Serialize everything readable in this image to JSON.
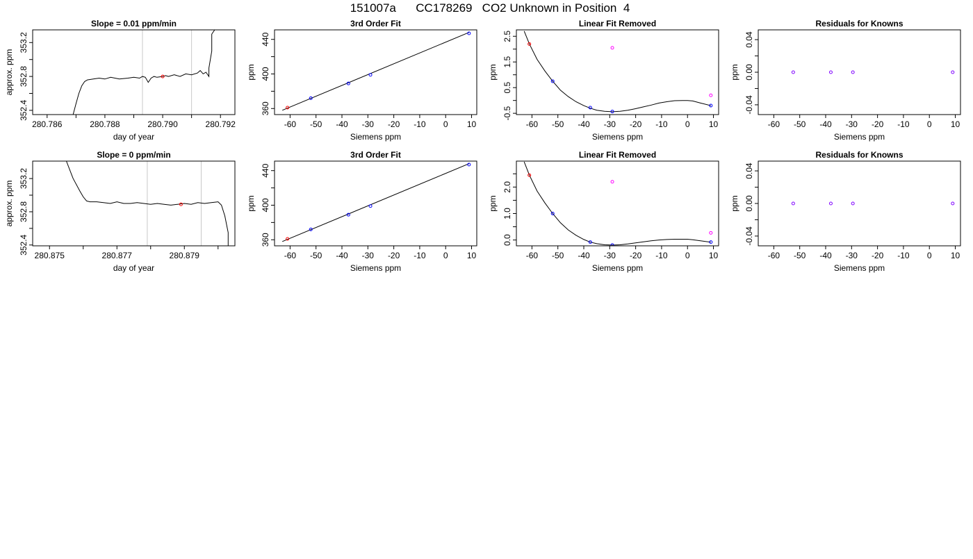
{
  "page_title": "151007a      CC178269   CO2 Unknown in Position  4",
  "colors": {
    "background": "#ffffff",
    "axis": "#000000",
    "trace": "#000000",
    "vline": "#c8c8c8",
    "unknown_point": "#ff0000",
    "known_point": "#0000ff",
    "unknown_check": "#ff00ff",
    "residual_point": "#7f00ff"
  },
  "chart_data": [
    {
      "id": "r1c1",
      "type": "line",
      "title": "Slope =  0.01  ppm/min",
      "xlabel": "day of year",
      "ylabel": "approx. ppm",
      "xlim": [
        280.7855,
        280.7925
      ],
      "ylim": [
        352.35,
        353.35
      ],
      "xticks": [
        280.786,
        280.788,
        280.79,
        280.792
      ],
      "xtick_labels": [
        "280.786",
        "280.788",
        "280.790",
        "280.792"
      ],
      "xticks_minor": [
        280.787,
        280.789,
        280.791
      ],
      "yticks": [
        352.4,
        352.8,
        353.2
      ],
      "ytick_labels": [
        "352.4",
        "352.8",
        "353.2"
      ],
      "yticks_minor": [
        352.6,
        353.0
      ],
      "vlines": [
        280.7893,
        280.791
      ],
      "trace": {
        "x": [
          280.7869,
          280.787,
          280.7871,
          280.7872,
          280.7873,
          280.7874,
          280.7876,
          280.7878,
          280.788,
          280.7882,
          280.7885,
          280.7888,
          280.789,
          280.7892,
          280.7893,
          280.7894,
          280.7895,
          280.7896,
          280.7897,
          280.7898,
          280.79,
          280.7901,
          280.7902,
          280.7904,
          280.7906,
          280.7908,
          280.791,
          280.7912,
          280.7913,
          280.7914,
          280.7915,
          280.7916,
          280.7916,
          280.7917,
          280.7917,
          280.7918
        ],
        "y": [
          352.35,
          352.48,
          352.6,
          352.69,
          352.74,
          352.76,
          352.77,
          352.78,
          352.77,
          352.79,
          352.77,
          352.78,
          352.79,
          352.78,
          352.8,
          352.79,
          352.73,
          352.78,
          352.8,
          352.79,
          352.8,
          352.81,
          352.8,
          352.82,
          352.8,
          352.83,
          352.82,
          352.84,
          352.87,
          352.83,
          352.85,
          352.8,
          352.9,
          353.1,
          353.3,
          353.35
        ]
      },
      "points": [
        {
          "x": 280.79,
          "y": 352.8,
          "kind": "unknown_point"
        }
      ]
    },
    {
      "id": "r1c2",
      "type": "line",
      "title": "3rd Order Fit",
      "xlabel": "Siemens ppm",
      "ylabel": "ppm",
      "xlim": [
        -66,
        12
      ],
      "ylim": [
        353,
        451
      ],
      "xticks": [
        -60,
        -50,
        -40,
        -30,
        -20,
        -10,
        0,
        10
      ],
      "xtick_labels": [
        "-60",
        "-50",
        "-40",
        "-30",
        "-20",
        "-10",
        "0",
        "10"
      ],
      "yticks": [
        360,
        400,
        440
      ],
      "ytick_labels": [
        "360",
        "400",
        "440"
      ],
      "yticks_minor": [
        380,
        420
      ],
      "curve": {
        "x": [
          -63,
          9
        ],
        "y": [
          358,
          448
        ]
      },
      "points": [
        {
          "x": -61,
          "y": 361,
          "kind": "unknown_point"
        },
        {
          "x": -52,
          "y": 372,
          "kind": "known_point"
        },
        {
          "x": -37.5,
          "y": 389,
          "kind": "known_point"
        },
        {
          "x": -29,
          "y": 399,
          "kind": "known_point"
        },
        {
          "x": 9,
          "y": 447,
          "kind": "known_point"
        }
      ]
    },
    {
      "id": "r1c3",
      "type": "line",
      "title": "Linear Fit Removed",
      "xlabel": "Siemens ppm",
      "ylabel": "ppm",
      "xlim": [
        -66,
        12
      ],
      "ylim": [
        -0.55,
        2.75
      ],
      "xticks": [
        -60,
        -50,
        -40,
        -30,
        -20,
        -10,
        0,
        10
      ],
      "xtick_labels": [
        "-60",
        "-50",
        "-40",
        "-30",
        "-20",
        "-10",
        "0",
        "10"
      ],
      "yticks": [
        -0.5,
        0.5,
        1.5,
        2.5
      ],
      "ytick_labels": [
        "-0.5",
        "0.5",
        "1.5",
        "2.5"
      ],
      "yticks_minor": [
        0.0,
        1.0,
        2.0
      ],
      "curve": {
        "x": [
          -63,
          -61,
          -58,
          -55,
          -52,
          -49,
          -46,
          -43,
          -40,
          -37.5,
          -35,
          -32,
          -29,
          -26,
          -23,
          -20,
          -17,
          -14,
          -11,
          -8,
          -5,
          -2,
          0,
          2,
          5,
          9
        ],
        "y": [
          2.7,
          2.2,
          1.6,
          1.15,
          0.75,
          0.4,
          0.15,
          -0.05,
          -0.2,
          -0.3,
          -0.38,
          -0.42,
          -0.44,
          -0.42,
          -0.38,
          -0.32,
          -0.25,
          -0.18,
          -0.1,
          -0.05,
          -0.01,
          0.0,
          0.0,
          -0.02,
          -0.1,
          -0.2
        ]
      },
      "points": [
        {
          "x": -61,
          "y": 2.2,
          "kind": "unknown_point"
        },
        {
          "x": -52,
          "y": 0.75,
          "kind": "known_point"
        },
        {
          "x": -37.5,
          "y": -0.28,
          "kind": "known_point"
        },
        {
          "x": -29,
          "y": -0.43,
          "kind": "known_point"
        },
        {
          "x": 9,
          "y": -0.2,
          "kind": "known_point"
        },
        {
          "x": -29,
          "y": 2.05,
          "kind": "unknown_check"
        },
        {
          "x": 9,
          "y": 0.2,
          "kind": "unknown_check"
        }
      ]
    },
    {
      "id": "r1c4",
      "type": "scatter",
      "title": "Residuals for Knowns",
      "xlabel": "Siemens ppm",
      "ylabel": "ppm",
      "xlim": [
        -66,
        12
      ],
      "ylim": [
        -0.052,
        0.052
      ],
      "xticks": [
        -60,
        -50,
        -40,
        -30,
        -20,
        -10,
        0,
        10
      ],
      "xtick_labels": [
        "-60",
        "-50",
        "-40",
        "-30",
        "-20",
        "-10",
        "0",
        "10"
      ],
      "yticks": [
        -0.04,
        0.0,
        0.04
      ],
      "ytick_labels": [
        "-0.04",
        "0.00",
        "0.04"
      ],
      "yticks_minor": [
        -0.02,
        0.02
      ],
      "points": [
        {
          "x": -52.5,
          "y": 0,
          "kind": "residual_point"
        },
        {
          "x": -38,
          "y": 0,
          "kind": "residual_point"
        },
        {
          "x": -29.5,
          "y": 0,
          "kind": "residual_point"
        },
        {
          "x": 9,
          "y": 0,
          "kind": "residual_point"
        }
      ]
    },
    {
      "id": "r2c1",
      "type": "line",
      "title": "Slope =  0  ppm/min",
      "xlabel": "day of year",
      "ylabel": "approx. ppm",
      "xlim": [
        280.8745,
        280.8805
      ],
      "ylim": [
        352.39,
        353.41
      ],
      "xticks": [
        280.875,
        280.877,
        280.879
      ],
      "xtick_labels": [
        "280.875",
        "280.877",
        "280.879"
      ],
      "xticks_minor": [
        280.876,
        280.878,
        280.88
      ],
      "yticks": [
        352.4,
        352.8,
        353.2
      ],
      "ytick_labels": [
        "352.4",
        "352.8",
        "353.2"
      ],
      "yticks_minor": [
        352.6,
        353.0
      ],
      "vlines": [
        280.8779,
        280.8795
      ],
      "trace": {
        "x": [
          280.8755,
          280.8757,
          280.8759,
          280.876,
          280.8761,
          280.8762,
          280.8764,
          280.8766,
          280.8768,
          280.877,
          280.8772,
          280.8774,
          280.8776,
          280.8778,
          280.878,
          280.8782,
          280.8784,
          280.8786,
          280.8788,
          280.879,
          280.8792,
          280.8794,
          280.8796,
          280.8798,
          280.88,
          280.8801,
          280.8802,
          280.8803,
          280.8803
        ],
        "y": [
          353.41,
          353.2,
          353.05,
          352.98,
          352.93,
          352.92,
          352.92,
          352.91,
          352.9,
          352.92,
          352.9,
          352.9,
          352.91,
          352.9,
          352.89,
          352.9,
          352.89,
          352.88,
          352.89,
          352.9,
          352.89,
          352.91,
          352.9,
          352.91,
          352.92,
          352.88,
          352.75,
          352.55,
          352.39
        ]
      },
      "points": [
        {
          "x": 280.8789,
          "y": 352.89,
          "kind": "unknown_point"
        }
      ]
    },
    {
      "id": "r2c2",
      "type": "line",
      "title": "3rd Order Fit",
      "xlabel": "Siemens ppm",
      "ylabel": "ppm",
      "xlim": [
        -66,
        12
      ],
      "ylim": [
        353,
        451
      ],
      "xticks": [
        -60,
        -50,
        -40,
        -30,
        -20,
        -10,
        0,
        10
      ],
      "xtick_labels": [
        "-60",
        "-50",
        "-40",
        "-30",
        "-20",
        "-10",
        "0",
        "10"
      ],
      "yticks": [
        360,
        400,
        440
      ],
      "ytick_labels": [
        "360",
        "400",
        "440"
      ],
      "yticks_minor": [
        380,
        420
      ],
      "curve": {
        "x": [
          -63,
          9
        ],
        "y": [
          358,
          448
        ]
      },
      "points": [
        {
          "x": -61,
          "y": 361,
          "kind": "unknown_point"
        },
        {
          "x": -52,
          "y": 372,
          "kind": "known_point"
        },
        {
          "x": -37.5,
          "y": 389,
          "kind": "known_point"
        },
        {
          "x": -29,
          "y": 399,
          "kind": "known_point"
        },
        {
          "x": 9,
          "y": 447,
          "kind": "known_point"
        }
      ]
    },
    {
      "id": "r2c3",
      "type": "line",
      "title": "Linear Fit Removed",
      "xlabel": "Siemens ppm",
      "ylabel": "ppm",
      "xlim": [
        -66,
        12
      ],
      "ylim": [
        -0.22,
        2.98
      ],
      "xticks": [
        -60,
        -50,
        -40,
        -30,
        -20,
        -10,
        0,
        10
      ],
      "xtick_labels": [
        "-60",
        "-50",
        "-40",
        "-30",
        "-20",
        "-10",
        "0",
        "10"
      ],
      "yticks": [
        0.0,
        1.0,
        2.0
      ],
      "ytick_labels": [
        "0.0",
        "1.0",
        "2.0"
      ],
      "yticks_minor": [
        0.5,
        1.5,
        2.5
      ],
      "curve": {
        "x": [
          -63,
          -61,
          -58,
          -55,
          -52,
          -49,
          -46,
          -43,
          -40,
          -37.5,
          -35,
          -32,
          -29,
          -26,
          -23,
          -20,
          -17,
          -14,
          -11,
          -8,
          -5,
          -2,
          0,
          2,
          5,
          9
        ],
        "y": [
          2.95,
          2.45,
          1.85,
          1.4,
          1.0,
          0.65,
          0.38,
          0.18,
          0.02,
          -0.08,
          -0.14,
          -0.18,
          -0.19,
          -0.18,
          -0.15,
          -0.11,
          -0.07,
          -0.03,
          0.0,
          0.02,
          0.03,
          0.03,
          0.03,
          0.01,
          -0.03,
          -0.08
        ]
      },
      "points": [
        {
          "x": -61,
          "y": 2.45,
          "kind": "unknown_point"
        },
        {
          "x": -52,
          "y": 1.0,
          "kind": "known_point"
        },
        {
          "x": -37.5,
          "y": -0.08,
          "kind": "known_point"
        },
        {
          "x": -29,
          "y": -0.19,
          "kind": "known_point"
        },
        {
          "x": 9,
          "y": -0.08,
          "kind": "known_point"
        },
        {
          "x": -29,
          "y": 2.2,
          "kind": "unknown_check"
        },
        {
          "x": 9,
          "y": 0.27,
          "kind": "unknown_check"
        }
      ]
    },
    {
      "id": "r2c4",
      "type": "scatter",
      "title": "Residuals for Knowns",
      "xlabel": "Siemens ppm",
      "ylabel": "ppm",
      "xlim": [
        -66,
        12
      ],
      "ylim": [
        -0.052,
        0.052
      ],
      "xticks": [
        -60,
        -50,
        -40,
        -30,
        -20,
        -10,
        0,
        10
      ],
      "xtick_labels": [
        "-60",
        "-50",
        "-40",
        "-30",
        "-20",
        "-10",
        "0",
        "10"
      ],
      "yticks": [
        -0.04,
        0.0,
        0.04
      ],
      "ytick_labels": [
        "-0.04",
        "0.00",
        "0.04"
      ],
      "yticks_minor": [
        -0.02,
        0.02
      ],
      "points": [
        {
          "x": -52.5,
          "y": 0,
          "kind": "residual_point"
        },
        {
          "x": -38,
          "y": 0,
          "kind": "residual_point"
        },
        {
          "x": -29.5,
          "y": 0,
          "kind": "residual_point"
        },
        {
          "x": 9,
          "y": 0,
          "kind": "residual_point"
        }
      ]
    }
  ]
}
